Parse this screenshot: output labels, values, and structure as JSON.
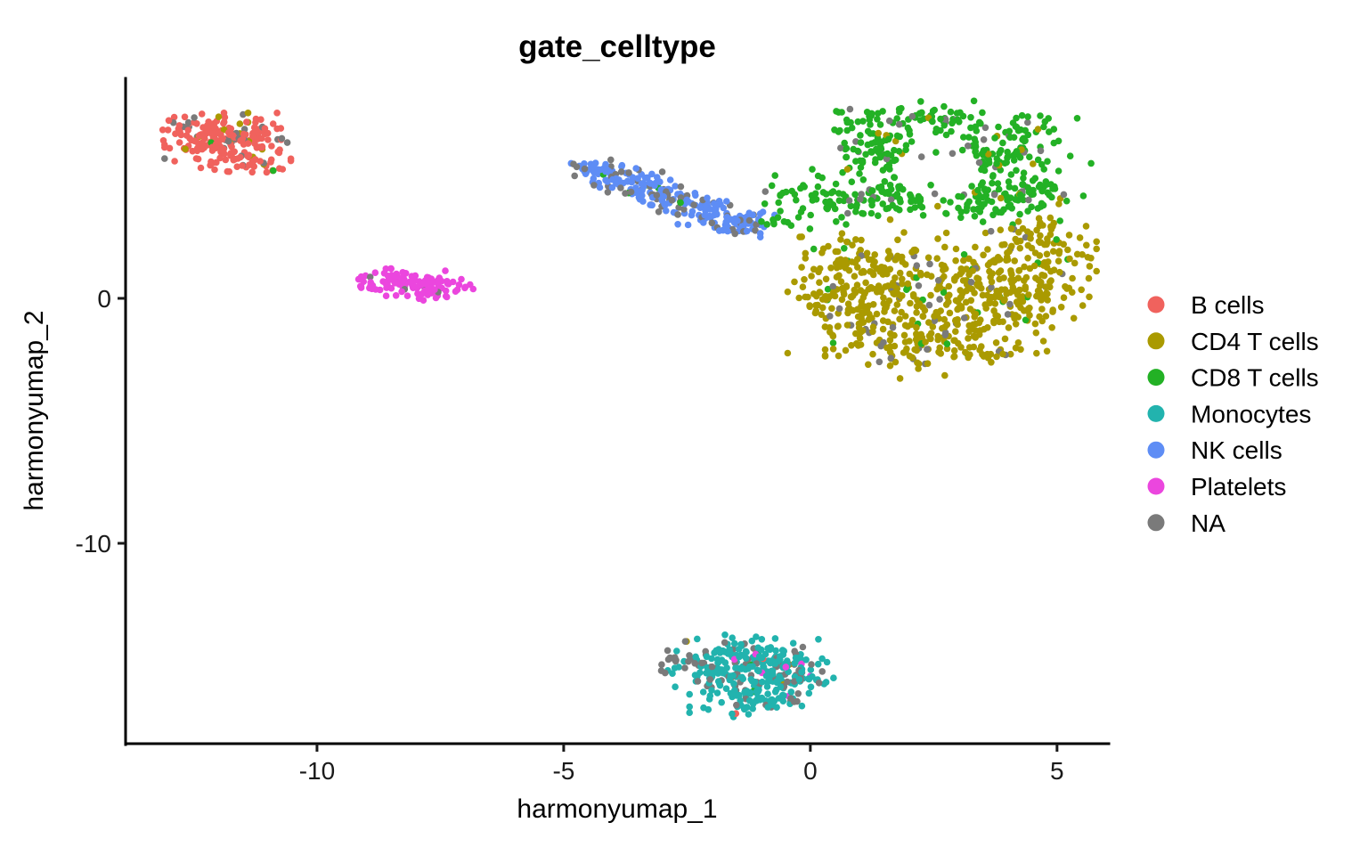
{
  "chart_data": {
    "type": "scatter",
    "title": "gate_celltype",
    "xlabel": "harmonyumap_1",
    "ylabel": "harmonyumap_2",
    "x_ticks": [
      -10,
      -5,
      0,
      5
    ],
    "y_ticks": [
      0,
      -10
    ],
    "x_range": [
      -13.88,
      6.05
    ],
    "y_range": [
      -18.18,
      8.98
    ],
    "grid": false,
    "legend_position": "right",
    "point_radius_px": 3.8,
    "legend_dot_radius_px": 9.5,
    "categories": [
      {
        "label": "B cells",
        "color": "#F0625D"
      },
      {
        "label": "CD4 T cells",
        "color": "#AA9A00"
      },
      {
        "label": "CD8 T cells",
        "color": "#23B125"
      },
      {
        "label": "Monocytes",
        "color": "#22B3AE"
      },
      {
        "label": "NK cells",
        "color": "#5E8DF5"
      },
      {
        "label": "Platelets",
        "color": "#EB46DE"
      },
      {
        "label": "NA",
        "color": "#7A7A7A"
      }
    ],
    "clusters": [
      {
        "name": "b-cells-cluster",
        "blobs": [
          [
            -12.5,
            6.9,
            0.35,
            0.35,
            40
          ],
          [
            -11.8,
            6.8,
            0.45,
            0.35,
            60
          ],
          [
            -11.2,
            6.5,
            0.35,
            0.35,
            45
          ],
          [
            -12.1,
            5.9,
            0.45,
            0.4,
            60
          ],
          [
            -11.3,
            5.5,
            0.35,
            0.3,
            30
          ]
        ],
        "mix": {
          "B cells": 0.815,
          "NA": 0.11,
          "CD4 T cells": 0.045,
          "CD8 T cells": 0.03
        }
      },
      {
        "name": "platelets-cluster",
        "blobs": [
          [
            -8.6,
            0.7,
            0.3,
            0.28,
            35
          ],
          [
            -8.05,
            0.55,
            0.35,
            0.3,
            45
          ],
          [
            -7.45,
            0.4,
            0.28,
            0.26,
            35
          ]
        ],
        "mix": {
          "Platelets": 0.95,
          "NA": 0.05
        }
      },
      {
        "name": "nk-cells-cluster",
        "blobs": [
          [
            -4.3,
            5.2,
            0.28,
            0.25,
            35
          ],
          [
            -3.85,
            4.9,
            0.32,
            0.28,
            40
          ],
          [
            -3.35,
            4.55,
            0.33,
            0.28,
            40
          ],
          [
            -2.85,
            4.15,
            0.33,
            0.28,
            38
          ],
          [
            -2.35,
            3.75,
            0.35,
            0.28,
            38
          ],
          [
            -1.85,
            3.4,
            0.38,
            0.28,
            45
          ],
          [
            -1.45,
            3.05,
            0.33,
            0.25,
            40
          ]
        ],
        "mix": {
          "NK cells": 0.72,
          "NA": 0.26,
          "CD8 T cells": 0.02
        }
      },
      {
        "name": "cd8-t-cells-cluster",
        "hole": {
          "cx": 2.6,
          "cy": 5.3,
          "rx": 0.8,
          "ry": 1.3
        },
        "blobs": [
          [
            2.2,
            7.3,
            0.9,
            0.35,
            70
          ],
          [
            4.2,
            6.2,
            0.55,
            0.75,
            90
          ],
          [
            1.45,
            5.9,
            0.45,
            0.75,
            70
          ],
          [
            3.3,
            4.0,
            0.8,
            0.45,
            70
          ],
          [
            1.9,
            4.35,
            0.5,
            0.4,
            40
          ],
          [
            0.6,
            3.9,
            0.55,
            0.45,
            55
          ],
          [
            4.7,
            4.3,
            0.45,
            0.55,
            40
          ],
          [
            2.9,
            5.5,
            0.4,
            0.4,
            25
          ],
          [
            1.2,
            6.3,
            0.4,
            0.45,
            25
          ],
          [
            -0.45,
            3.1,
            0.3,
            0.25,
            10
          ],
          [
            0.0,
            4.6,
            0.35,
            0.4,
            8
          ]
        ],
        "mix": {
          "CD8 T cells": 0.9,
          "NA": 0.07,
          "CD4 T cells": 0.03
        }
      },
      {
        "name": "cd8-hole-sparse",
        "blobs": [
          [
            2.6,
            5.3,
            0.45,
            0.7,
            7
          ]
        ],
        "mix": {
          "CD8 T cells": 0.45,
          "NA": 0.4,
          "CD4 T cells": 0.15
        }
      },
      {
        "name": "cd4-t-cells-cluster",
        "blobs": [
          [
            2.6,
            0.8,
            1.15,
            0.85,
            180
          ],
          [
            1.3,
            -0.6,
            0.8,
            0.85,
            130
          ],
          [
            3.9,
            -0.3,
            0.8,
            0.9,
            130
          ],
          [
            2.5,
            -1.95,
            1.0,
            0.6,
            115
          ],
          [
            4.7,
            1.5,
            0.5,
            0.6,
            60
          ],
          [
            1.0,
            1.7,
            0.5,
            0.45,
            50
          ],
          [
            4.6,
            2.6,
            0.45,
            0.35,
            35
          ],
          [
            0.35,
            0.3,
            0.4,
            0.5,
            30
          ]
        ],
        "mix": {
          "CD4 T cells": 0.905,
          "NA": 0.055,
          "CD8 T cells": 0.04
        }
      },
      {
        "name": "monocytes-cluster",
        "blobs": [
          [
            -1.6,
            -14.5,
            0.65,
            0.35,
            70
          ],
          [
            -0.7,
            -14.8,
            0.5,
            0.4,
            60
          ],
          [
            -1.9,
            -15.35,
            0.45,
            0.4,
            45
          ],
          [
            -1.0,
            -15.6,
            0.6,
            0.45,
            70
          ],
          [
            -0.3,
            -15.25,
            0.35,
            0.35,
            30
          ],
          [
            -1.35,
            -16.4,
            0.5,
            0.35,
            45
          ],
          [
            -0.65,
            -16.2,
            0.35,
            0.3,
            25
          ]
        ],
        "mix": {
          "Monocytes": 0.73,
          "NA": 0.21,
          "Platelets": 0.025,
          "B cells": 0.015,
          "CD4 T cells": 0.01,
          "CD8 T cells": 0.01
        }
      },
      {
        "name": "na-blob-left-of-monocytes",
        "blobs": [
          [
            -2.78,
            -14.95,
            0.2,
            0.26,
            14
          ]
        ],
        "mix": {
          "NA": 0.93,
          "Monocytes": 0.07
        }
      },
      {
        "name": "stray-green-points",
        "blobs": [
          [
            -0.95,
            4.3,
            0.3,
            0.45,
            6
          ]
        ],
        "mix": {
          "CD8 T cells": 0.85,
          "NA": 0.15
        }
      },
      {
        "name": "stray-olive-point",
        "blobs": [
          [
            -0.2,
            2.5,
            0.08,
            0.08,
            2
          ]
        ],
        "mix": {
          "CD4 T cells": 1.0
        }
      }
    ]
  }
}
